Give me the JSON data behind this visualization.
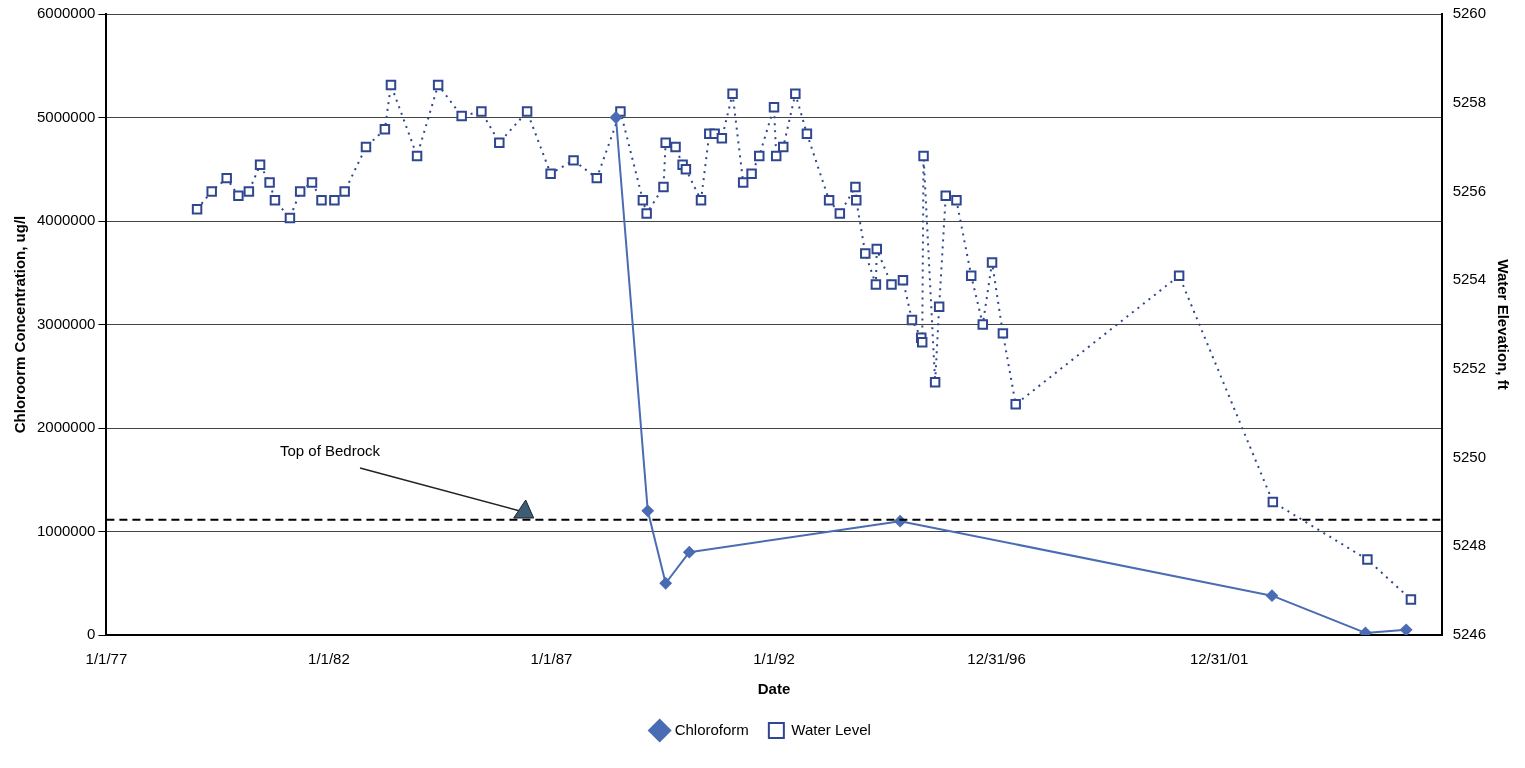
{
  "chart_data": {
    "type": "line",
    "xlabel": "Date",
    "ylabel": "Chloroorm Concentration, ug/l",
    "y2label": "Water Elevation, ft",
    "xlim": [
      "1977-01-01",
      "2006-12-31"
    ],
    "xticks": [
      {
        "value": "1977-01-01",
        "label": "1/1/77"
      },
      {
        "value": "1982-01-01",
        "label": "1/1/82"
      },
      {
        "value": "1987-01-01",
        "label": "1/1/87"
      },
      {
        "value": "1992-01-01",
        "label": "1/1/92"
      },
      {
        "value": "1996-12-31",
        "label": "12/31/96"
      },
      {
        "value": "2001-12-31",
        "label": "12/31/01"
      }
    ],
    "ylim": [
      0,
      6000000
    ],
    "yticks": [
      0,
      1000000,
      2000000,
      3000000,
      4000000,
      5000000,
      6000000
    ],
    "y2lim": [
      5246,
      5260
    ],
    "y2ticks": [
      5246,
      5248,
      5250,
      5252,
      5254,
      5256,
      5258,
      5260
    ],
    "grid": "y",
    "legend": "bottom",
    "series": [
      {
        "name": "Chloroform",
        "color": "#4a6cb3",
        "marker": "diamond",
        "line_style": "solid",
        "x": [
          "1988-06-13",
          "1989-03-01",
          "1989-07-26",
          "1990-02-05",
          "1994-11-01",
          "2003-03-10",
          "2005-04-15",
          "2006-03-15"
        ],
        "values": [
          5000000,
          1200000,
          500000,
          800000,
          1100000,
          380000,
          20000,
          50000
        ]
      },
      {
        "name": "Water Level",
        "color": "#2f4690",
        "marker": "square",
        "line_style": "dotted",
        "axis": "y2",
        "x": [
          "1979-01-15",
          "1979-05-15",
          "1979-09-15",
          "1979-12-20",
          "1980-03-15",
          "1980-06-15",
          "1980-09-01",
          "1980-10-15",
          "1981-02-15",
          "1981-05-10",
          "1981-08-15",
          "1981-11-01",
          "1982-02-15",
          "1982-05-10",
          "1982-11-01",
          "1983-04-05",
          "1983-05-25",
          "1983-12-25",
          "1984-06-15",
          "1984-12-25",
          "1985-06-05",
          "1985-10-30",
          "1986-06-15",
          "1986-12-25",
          "1987-07-01",
          "1988-01-08",
          "1988-07-20",
          "1989-01-20",
          "1989-02-20",
          "1989-07-08",
          "1989-07-26",
          "1989-10-15",
          "1989-12-12",
          "1990-01-08",
          "1990-05-12",
          "1990-07-19",
          "1990-09-01",
          "1990-10-30",
          "1991-01-26",
          "1991-04-23",
          "1991-07-01",
          "1991-09-02",
          "1992-01-01",
          "1992-01-19",
          "1992-03-17",
          "1992-06-24",
          "1992-09-27",
          "1993-03-28",
          "1993-06-24",
          "1993-10-30",
          "1993-11-06",
          "1994-01-19",
          "1994-04-16",
          "1994-04-23",
          "1994-08-22",
          "1994-11-24",
          "1995-02-06",
          "1995-04-23",
          "1995-05-01",
          "1995-05-12",
          "1995-08-15",
          "1995-09-17",
          "1995-11-10",
          "1996-02-06",
          "1996-06-06",
          "1996-09-09",
          "1996-11-24",
          "1997-02-21",
          "1997-06-06",
          "2001-02-06",
          "2003-03-17",
          "2005-05-01",
          "2006-04-23"
        ],
        "values": [
          5255.6,
          5256.0,
          5256.3,
          5255.9,
          5256.0,
          5256.6,
          5256.2,
          5255.8,
          5255.4,
          5256.0,
          5256.2,
          5255.8,
          5255.8,
          5256.0,
          5257.0,
          5257.4,
          5258.4,
          5256.8,
          5258.4,
          5257.7,
          5257.8,
          5257.1,
          5257.8,
          5256.4,
          5256.7,
          5256.3,
          5257.8,
          5255.8,
          5255.5,
          5256.1,
          5257.1,
          5257.0,
          5256.6,
          5256.5,
          5255.8,
          5257.3,
          5257.3,
          5257.2,
          5258.2,
          5256.2,
          5256.4,
          5256.8,
          5257.9,
          5256.8,
          5257.0,
          5258.2,
          5257.3,
          5255.8,
          5255.5,
          5256.1,
          5255.8,
          5254.6,
          5253.9,
          5254.7,
          5253.9,
          5254.0,
          5253.1,
          5252.7,
          5252.6,
          5256.8,
          5251.7,
          5253.4,
          5255.9,
          5255.8,
          5254.1,
          5253.0,
          5254.4,
          5252.8,
          5251.2,
          5254.1,
          5249.0,
          5247.7,
          5246.8
        ]
      }
    ],
    "ref_lines": [
      {
        "axis": "y2",
        "value": 5248.6,
        "label": "Top of Bedrock",
        "color": "#000000",
        "line_style": "dashed"
      }
    ]
  }
}
